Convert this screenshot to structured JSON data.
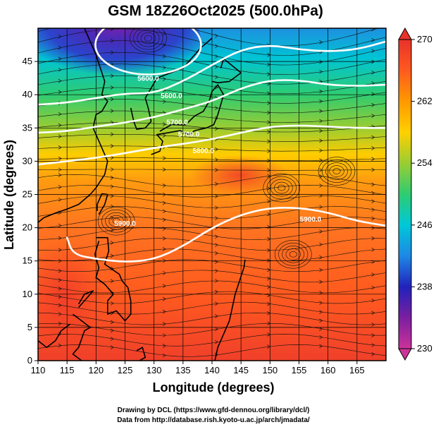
{
  "chart_data": {
    "type": "heatmap",
    "title": "GSM 18Z26Oct2025 (500.0hPa)",
    "xlabel": "Longitude (degrees)",
    "ylabel": "Latitude  (degrees)",
    "xlim": [
      110,
      170
    ],
    "ylim": [
      0,
      50
    ],
    "xticks": [
      110,
      115,
      120,
      125,
      130,
      135,
      140,
      145,
      150,
      155,
      160,
      165
    ],
    "yticks": [
      0,
      5,
      10,
      15,
      20,
      25,
      30,
      35,
      40,
      45
    ],
    "colorbar": {
      "min": 230,
      "max": 270,
      "ticks": [
        230,
        238,
        246,
        254,
        262,
        270
      ],
      "colors": [
        "#cc3399",
        "#7a1fa0",
        "#2222bb",
        "#1e88e5",
        "#00c8d8",
        "#2ecc71",
        "#9acd32",
        "#ffd000",
        "#ff9900",
        "#ff5a1f",
        "#e8322a"
      ]
    },
    "contours": [
      {
        "label": "5600.0",
        "points": [
          [
            110,
            38.5
          ],
          [
            115,
            38.8
          ],
          [
            120,
            39.5
          ],
          [
            125,
            40.2
          ],
          [
            130,
            40.2
          ],
          [
            135,
            42
          ],
          [
            140,
            44.5
          ],
          [
            145,
            46.8
          ],
          [
            150,
            47.5
          ],
          [
            155,
            46.8
          ],
          [
            160,
            46.5
          ],
          [
            165,
            46.8
          ],
          [
            170,
            48
          ]
        ]
      },
      {
        "label": "5700.0",
        "points": [
          [
            110,
            34.3
          ],
          [
            115,
            34.5
          ],
          [
            120,
            35.2
          ],
          [
            125,
            35.8
          ],
          [
            130,
            36.6
          ],
          [
            135,
            37.8
          ],
          [
            140,
            39
          ],
          [
            145,
            41
          ],
          [
            150,
            42.2
          ],
          [
            155,
            42.2
          ],
          [
            160,
            41.5
          ],
          [
            165,
            41.3
          ],
          [
            170,
            41.5
          ]
        ]
      },
      {
        "label": "5800.0",
        "points": [
          [
            110,
            29.5
          ],
          [
            115,
            30
          ],
          [
            120,
            30.5
          ],
          [
            125,
            31.2
          ],
          [
            130,
            32
          ],
          [
            135,
            32.6
          ],
          [
            140,
            33.3
          ],
          [
            145,
            34.3
          ],
          [
            150,
            35.2
          ],
          [
            155,
            35.4
          ],
          [
            160,
            35.2
          ],
          [
            165,
            35
          ],
          [
            170,
            35
          ]
        ]
      },
      {
        "label": "5900.0",
        "points": [
          [
            115,
            18.5
          ],
          [
            116,
            16
          ],
          [
            120,
            15.3
          ],
          [
            125,
            14.8
          ],
          [
            130,
            15.2
          ],
          [
            135,
            17.2
          ],
          [
            140,
            20
          ],
          [
            145,
            22
          ],
          [
            150,
            23
          ],
          [
            155,
            23
          ],
          [
            160,
            22.3
          ],
          [
            165,
            21
          ],
          [
            170,
            20.3
          ]
        ]
      }
    ],
    "contour_labels": [
      {
        "text": "5600.0",
        "lon": 129,
        "lat": 42.1
      },
      {
        "text": "5600.0",
        "lon": 133,
        "lat": 39.5
      },
      {
        "text": "5700.0",
        "lon": 134,
        "lat": 35.5
      },
      {
        "text": "5700.0",
        "lon": 136,
        "lat": 33.7
      },
      {
        "text": "5800.0",
        "lon": 138.5,
        "lat": 31.2
      },
      {
        "text": "5900.0",
        "lon": 125,
        "lat": 20.3
      },
      {
        "text": "5900.0",
        "lon": 157,
        "lat": 20.9
      }
    ],
    "vortices": [
      {
        "lon": 123.5,
        "lat": 21
      },
      {
        "lon": 161.5,
        "lat": 28.5
      },
      {
        "lon": 154,
        "lat": 16
      },
      {
        "lon": 152,
        "lat": 26
      },
      {
        "lon": 129,
        "lat": 48.5
      }
    ]
  },
  "credits": {
    "line1": "Drawing by DCL (https://www.gfd-dennou.org/library/dcl/)",
    "line2": "Data from http://database.rish.kyoto-u.ac.jp/arch/jmadata/"
  }
}
